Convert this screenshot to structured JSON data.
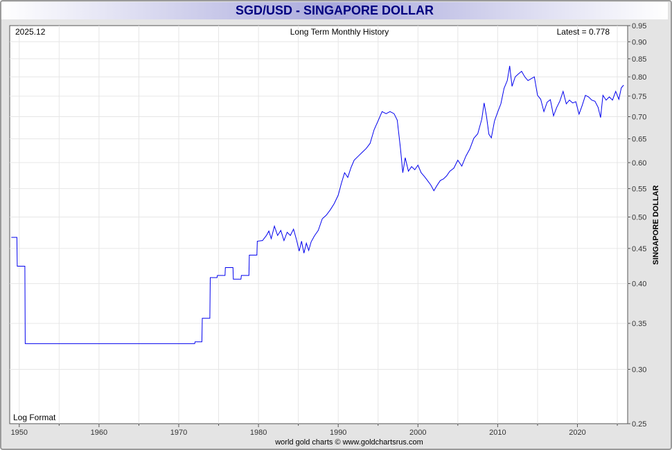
{
  "page": {
    "title": "SGD/USD - SINGAPORE DOLLAR",
    "footer": "world gold charts © www.goldchartsrus.com"
  },
  "chart_data": {
    "type": "line",
    "title": "SGD/USD - SINGAPORE DOLLAR",
    "subtitle": "Long Term Monthly History",
    "date_label": "2025.12",
    "latest_label": "Latest = 0.778",
    "scale_label": "Log Format",
    "xlabel": "",
    "ylabel": "SINGAPORE DOLLAR",
    "y_scale": "log",
    "ylim": [
      0.25,
      0.95
    ],
    "xlim": [
      1948.8,
      2026.3
    ],
    "grid": true,
    "y_ticks": [
      "0.25",
      "0.30",
      "0.35",
      "0.40",
      "0.45",
      "0.50",
      "0.55",
      "0.60",
      "0.65",
      "0.70",
      "0.75",
      "0.80",
      "0.85",
      "0.90",
      "0.95"
    ],
    "x_ticks": [
      "1950",
      "1960",
      "1970",
      "1980",
      "1990",
      "2000",
      "2010",
      "2020"
    ],
    "line_color": "#0000ee",
    "series": [
      {
        "values": [
          [
            1949.0,
            0.467
          ],
          [
            1949.7,
            0.467
          ],
          [
            1949.75,
            0.424
          ],
          [
            1950.7,
            0.424
          ],
          [
            1950.75,
            0.327
          ],
          [
            1972.0,
            0.327
          ],
          [
            1972.05,
            0.329
          ],
          [
            1972.9,
            0.329
          ],
          [
            1972.95,
            0.356
          ],
          [
            1973.9,
            0.356
          ],
          [
            1973.95,
            0.408
          ],
          [
            1974.8,
            0.408
          ],
          [
            1974.85,
            0.411
          ],
          [
            1975.8,
            0.411
          ],
          [
            1975.85,
            0.422
          ],
          [
            1976.8,
            0.422
          ],
          [
            1976.85,
            0.406
          ],
          [
            1977.8,
            0.406
          ],
          [
            1977.85,
            0.411
          ],
          [
            1978.8,
            0.411
          ],
          [
            1978.85,
            0.44
          ],
          [
            1979.8,
            0.44
          ],
          [
            1979.85,
            0.461
          ],
          [
            1980.5,
            0.462
          ],
          [
            1981.0,
            0.47
          ],
          [
            1981.3,
            0.477
          ],
          [
            1981.6,
            0.465
          ],
          [
            1982.0,
            0.485
          ],
          [
            1982.4,
            0.47
          ],
          [
            1982.8,
            0.478
          ],
          [
            1983.2,
            0.462
          ],
          [
            1983.6,
            0.475
          ],
          [
            1984.0,
            0.47
          ],
          [
            1984.4,
            0.48
          ],
          [
            1984.8,
            0.462
          ],
          [
            1985.1,
            0.446
          ],
          [
            1985.4,
            0.461
          ],
          [
            1985.7,
            0.443
          ],
          [
            1986.0,
            0.458
          ],
          [
            1986.3,
            0.447
          ],
          [
            1986.6,
            0.46
          ],
          [
            1987.0,
            0.469
          ],
          [
            1987.5,
            0.478
          ],
          [
            1988.0,
            0.497
          ],
          [
            1988.5,
            0.503
          ],
          [
            1989.0,
            0.512
          ],
          [
            1989.5,
            0.523
          ],
          [
            1990.0,
            0.538
          ],
          [
            1990.4,
            0.56
          ],
          [
            1990.8,
            0.58
          ],
          [
            1991.2,
            0.571
          ],
          [
            1991.6,
            0.59
          ],
          [
            1992.0,
            0.605
          ],
          [
            1992.5,
            0.613
          ],
          [
            1993.0,
            0.621
          ],
          [
            1993.5,
            0.629
          ],
          [
            1994.0,
            0.64
          ],
          [
            1994.5,
            0.67
          ],
          [
            1995.0,
            0.69
          ],
          [
            1995.5,
            0.712
          ],
          [
            1996.0,
            0.707
          ],
          [
            1996.5,
            0.712
          ],
          [
            1997.0,
            0.707
          ],
          [
            1997.4,
            0.692
          ],
          [
            1997.8,
            0.63
          ],
          [
            1998.1,
            0.58
          ],
          [
            1998.4,
            0.61
          ],
          [
            1998.8,
            0.583
          ],
          [
            1999.2,
            0.592
          ],
          [
            1999.6,
            0.586
          ],
          [
            2000.0,
            0.595
          ],
          [
            2000.4,
            0.58
          ],
          [
            2000.8,
            0.573
          ],
          [
            2001.2,
            0.565
          ],
          [
            2001.6,
            0.557
          ],
          [
            2002.0,
            0.546
          ],
          [
            2002.4,
            0.556
          ],
          [
            2002.8,
            0.565
          ],
          [
            2003.2,
            0.568
          ],
          [
            2003.6,
            0.574
          ],
          [
            2004.0,
            0.583
          ],
          [
            2004.5,
            0.589
          ],
          [
            2005.0,
            0.605
          ],
          [
            2005.5,
            0.593
          ],
          [
            2006.0,
            0.613
          ],
          [
            2006.5,
            0.628
          ],
          [
            2007.0,
            0.651
          ],
          [
            2007.5,
            0.661
          ],
          [
            2008.0,
            0.694
          ],
          [
            2008.3,
            0.733
          ],
          [
            2008.6,
            0.7
          ],
          [
            2008.9,
            0.66
          ],
          [
            2009.2,
            0.652
          ],
          [
            2009.6,
            0.69
          ],
          [
            2010.0,
            0.711
          ],
          [
            2010.4,
            0.731
          ],
          [
            2010.8,
            0.77
          ],
          [
            2011.2,
            0.79
          ],
          [
            2011.5,
            0.83
          ],
          [
            2011.8,
            0.775
          ],
          [
            2012.2,
            0.8
          ],
          [
            2012.6,
            0.808
          ],
          [
            2013.0,
            0.815
          ],
          [
            2013.4,
            0.8
          ],
          [
            2013.8,
            0.79
          ],
          [
            2014.2,
            0.795
          ],
          [
            2014.6,
            0.8
          ],
          [
            2015.0,
            0.752
          ],
          [
            2015.4,
            0.742
          ],
          [
            2015.8,
            0.712
          ],
          [
            2016.2,
            0.735
          ],
          [
            2016.6,
            0.741
          ],
          [
            2017.0,
            0.702
          ],
          [
            2017.4,
            0.722
          ],
          [
            2017.8,
            0.738
          ],
          [
            2018.2,
            0.762
          ],
          [
            2018.6,
            0.731
          ],
          [
            2019.0,
            0.74
          ],
          [
            2019.4,
            0.733
          ],
          [
            2019.8,
            0.736
          ],
          [
            2020.2,
            0.706
          ],
          [
            2020.6,
            0.727
          ],
          [
            2021.0,
            0.752
          ],
          [
            2021.4,
            0.748
          ],
          [
            2021.8,
            0.74
          ],
          [
            2022.2,
            0.737
          ],
          [
            2022.6,
            0.722
          ],
          [
            2022.9,
            0.698
          ],
          [
            2023.2,
            0.752
          ],
          [
            2023.6,
            0.74
          ],
          [
            2024.0,
            0.748
          ],
          [
            2024.4,
            0.74
          ],
          [
            2024.8,
            0.762
          ],
          [
            2025.2,
            0.742
          ],
          [
            2025.5,
            0.771
          ],
          [
            2025.8,
            0.778
          ]
        ]
      }
    ]
  }
}
